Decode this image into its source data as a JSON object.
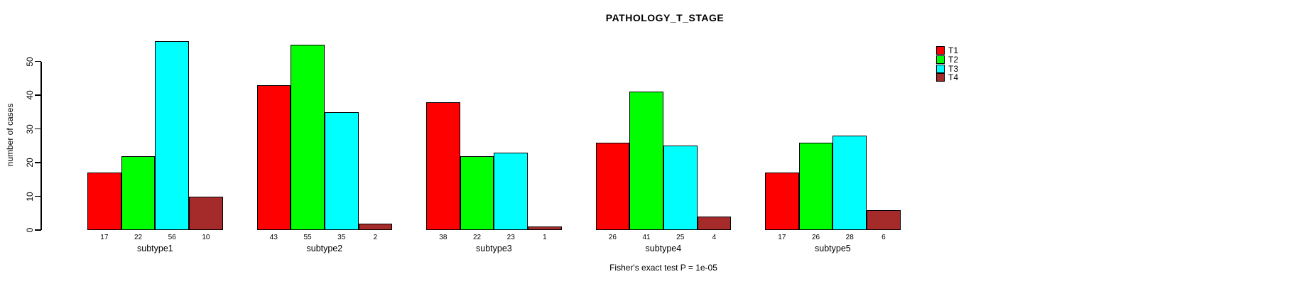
{
  "chart_data": {
    "type": "bar",
    "title": "PATHOLOGY_T_STAGE",
    "ylabel": "number of cases",
    "xlabel": "",
    "annotation": "Fisher's exact test P = 1e-05",
    "categories": [
      "subtype1",
      "subtype2",
      "subtype3",
      "subtype4",
      "subtype5"
    ],
    "series": [
      {
        "name": "T1",
        "color": "#FF0000",
        "values": [
          17,
          43,
          38,
          26,
          17
        ]
      },
      {
        "name": "T2",
        "color": "#00FF00",
        "values": [
          22,
          55,
          22,
          41,
          26
        ]
      },
      {
        "name": "T3",
        "color": "#00FFFF",
        "values": [
          56,
          35,
          23,
          25,
          28
        ]
      },
      {
        "name": "T4",
        "color": "#A52A2A",
        "values": [
          10,
          2,
          1,
          4,
          6
        ]
      }
    ],
    "bar_value_labels": [
      [
        17,
        22,
        56,
        10
      ],
      [
        43,
        55,
        35,
        2
      ],
      [
        38,
        22,
        23,
        1
      ],
      [
        26,
        41,
        25,
        4
      ],
      [
        17,
        26,
        28,
        6
      ]
    ],
    "yticks": [
      0,
      10,
      20,
      30,
      40,
      50
    ],
    "ylim": [
      0,
      58
    ],
    "grid": false,
    "legend": {
      "position": "top-right",
      "entries": [
        "T1",
        "T2",
        "T3",
        "T4"
      ]
    }
  }
}
